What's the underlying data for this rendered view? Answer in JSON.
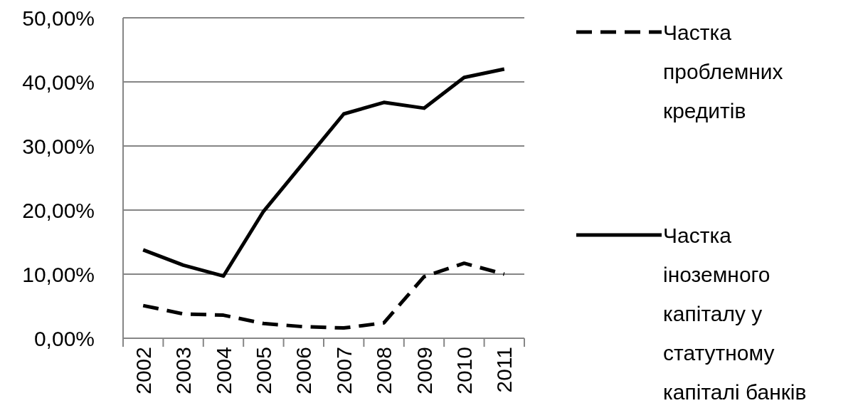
{
  "chart_data": {
    "type": "line",
    "categories": [
      "2002",
      "2003",
      "2004",
      "2005",
      "2006",
      "2007",
      "2008",
      "2009",
      "2010",
      "2011"
    ],
    "series": [
      {
        "name": "Частка проблемних кредитів",
        "color": "#000000",
        "line_style": "dashed",
        "values": [
          5.1,
          3.8,
          3.6,
          2.3,
          1.8,
          1.6,
          2.4,
          9.6,
          11.7,
          10.0
        ]
      },
      {
        "name": "Частка іноземного капіталу у статутному капіталі банків",
        "color": "#000000",
        "line_style": "solid",
        "values": [
          13.8,
          11.4,
          9.7,
          19.8,
          27.4,
          35.0,
          36.8,
          35.9,
          40.7,
          42.0
        ]
      }
    ],
    "ylim": [
      0,
      50
    ],
    "yticks": [
      {
        "value": 0,
        "label": "0,00%"
      },
      {
        "value": 10,
        "label": "10,00%"
      },
      {
        "value": 20,
        "label": "20,00%"
      },
      {
        "value": 30,
        "label": "30,00%"
      },
      {
        "value": 40,
        "label": "40,00%"
      },
      {
        "value": 50,
        "label": "50,00%"
      }
    ],
    "grid": "y",
    "legend": "right",
    "marker": "none"
  }
}
